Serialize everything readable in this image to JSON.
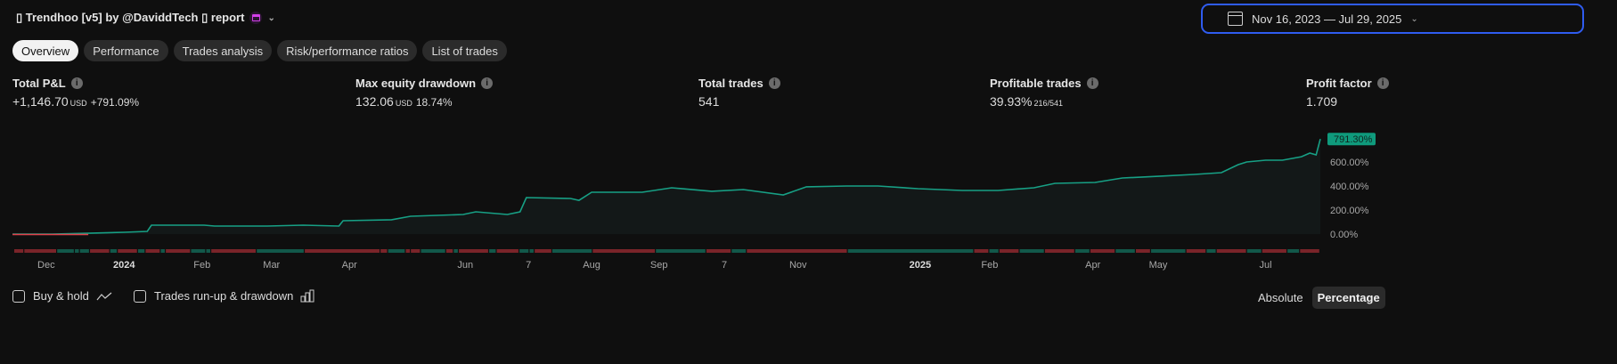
{
  "header": {
    "title": "▯ Trendhoo [v5] by @DaviddTech ▯ report",
    "date_range": "Nov 16, 2023 — Jul 29, 2025"
  },
  "tabs": [
    "Overview",
    "Performance",
    "Trades analysis",
    "Risk/performance ratios",
    "List of trades"
  ],
  "stats": {
    "total_pnl": {
      "label": "Total P&L",
      "value": "+1,146.70",
      "unit": "USD",
      "pct": "+791.09%"
    },
    "max_dd": {
      "label": "Max equity drawdown",
      "value": "132.06",
      "unit": "USD",
      "pct": "18.74%"
    },
    "total_trades": {
      "label": "Total trades",
      "value": "541"
    },
    "profitable": {
      "label": "Profitable trades",
      "value": "39.93%",
      "sub": "216/541"
    },
    "profit_factor": {
      "label": "Profit factor",
      "value": "1.709"
    }
  },
  "colors": {
    "line": "#17a085",
    "neg": "#e0404a",
    "win": "#12584a",
    "loss": "#7a2429",
    "badge": "#0f9a7c"
  },
  "chart_data": {
    "type": "line",
    "last_value_label": "791.30%",
    "y_ticks": [
      "0.00%",
      "200.00%",
      "400.00%",
      "600.00%"
    ],
    "ylim": [
      0,
      800
    ],
    "x_range_days": [
      0,
      621
    ],
    "x": [
      0,
      19,
      36,
      53,
      64,
      66,
      91,
      96,
      121,
      138,
      155,
      157,
      180,
      189,
      214,
      220,
      235,
      241,
      244,
      265,
      269,
      275,
      299,
      313,
      332,
      347,
      366,
      377,
      396,
      411,
      430,
      451,
      468,
      485,
      495,
      514,
      527,
      544,
      561,
      574,
      582,
      586,
      595,
      603,
      612,
      616,
      619,
      621
    ],
    "y": [
      0,
      0,
      7,
      15,
      22,
      74,
      74,
      67,
      67,
      74,
      67,
      111,
      119,
      148,
      163,
      185,
      163,
      185,
      304,
      296,
      281,
      348,
      348,
      385,
      356,
      370,
      326,
      393,
      400,
      400,
      378,
      363,
      363,
      385,
      422,
      430,
      467,
      481,
      496,
      511,
      578,
      600,
      615,
      615,
      644,
      674,
      659,
      791
    ],
    "x_ticks": [
      {
        "label": "Dec",
        "day": 16
      },
      {
        "label": "2024",
        "day": 53,
        "bold": true
      },
      {
        "label": "Feb",
        "day": 90
      },
      {
        "label": "Mar",
        "day": 123
      },
      {
        "label": "Apr",
        "day": 160
      },
      {
        "label": "Jun",
        "day": 215
      },
      {
        "label": "7",
        "day": 245
      },
      {
        "label": "Aug",
        "day": 275
      },
      {
        "label": "Sep",
        "day": 307
      },
      {
        "label": "7",
        "day": 338
      },
      {
        "label": "Nov",
        "day": 373
      },
      {
        "label": "2025",
        "day": 431,
        "bold": true
      },
      {
        "label": "Feb",
        "day": 464
      },
      {
        "label": "Apr",
        "day": 513
      },
      {
        "label": "May",
        "day": 544
      },
      {
        "label": "Jul",
        "day": 595
      }
    ],
    "trade_segments": [
      [
        "l",
        4
      ],
      [
        "l",
        13
      ],
      [
        "w",
        7
      ],
      [
        "w",
        2
      ],
      [
        "w",
        4
      ],
      [
        "l",
        8
      ],
      [
        "w",
        3
      ],
      [
        "l",
        8
      ],
      [
        "w",
        3
      ],
      [
        "l",
        6
      ],
      [
        "w",
        2
      ],
      [
        "l",
        10
      ],
      [
        "w",
        6
      ],
      [
        "w",
        2
      ],
      [
        "l",
        18
      ],
      [
        "w",
        19
      ],
      [
        "l",
        30
      ],
      [
        "l",
        3
      ],
      [
        "w",
        7
      ],
      [
        "l",
        2
      ],
      [
        "l",
        4
      ],
      [
        "w",
        10
      ],
      [
        "l",
        3
      ],
      [
        "w",
        2
      ],
      [
        "l",
        12
      ],
      [
        "w",
        3
      ],
      [
        "l",
        9
      ],
      [
        "w",
        4
      ],
      [
        "w",
        2
      ],
      [
        "l",
        7
      ],
      [
        "w",
        16
      ],
      [
        "l",
        25
      ],
      [
        "w",
        20
      ],
      [
        "l",
        10
      ],
      [
        "w",
        6
      ],
      [
        "l",
        40
      ],
      [
        "w",
        50
      ],
      [
        "l",
        6
      ],
      [
        "w",
        4
      ],
      [
        "l",
        8
      ],
      [
        "w",
        10
      ],
      [
        "l",
        12
      ],
      [
        "w",
        6
      ],
      [
        "l",
        10
      ],
      [
        "w",
        8
      ],
      [
        "l",
        6
      ],
      [
        "w",
        14
      ],
      [
        "l",
        8
      ],
      [
        "w",
        4
      ],
      [
        "l",
        12
      ],
      [
        "w",
        6
      ],
      [
        "l",
        10
      ],
      [
        "w",
        5
      ],
      [
        "l",
        8
      ]
    ]
  },
  "footer": {
    "buy_hold": "Buy & hold",
    "runup": "Trades run-up & drawdown",
    "absolute": "Absolute",
    "percentage": "Percentage"
  }
}
